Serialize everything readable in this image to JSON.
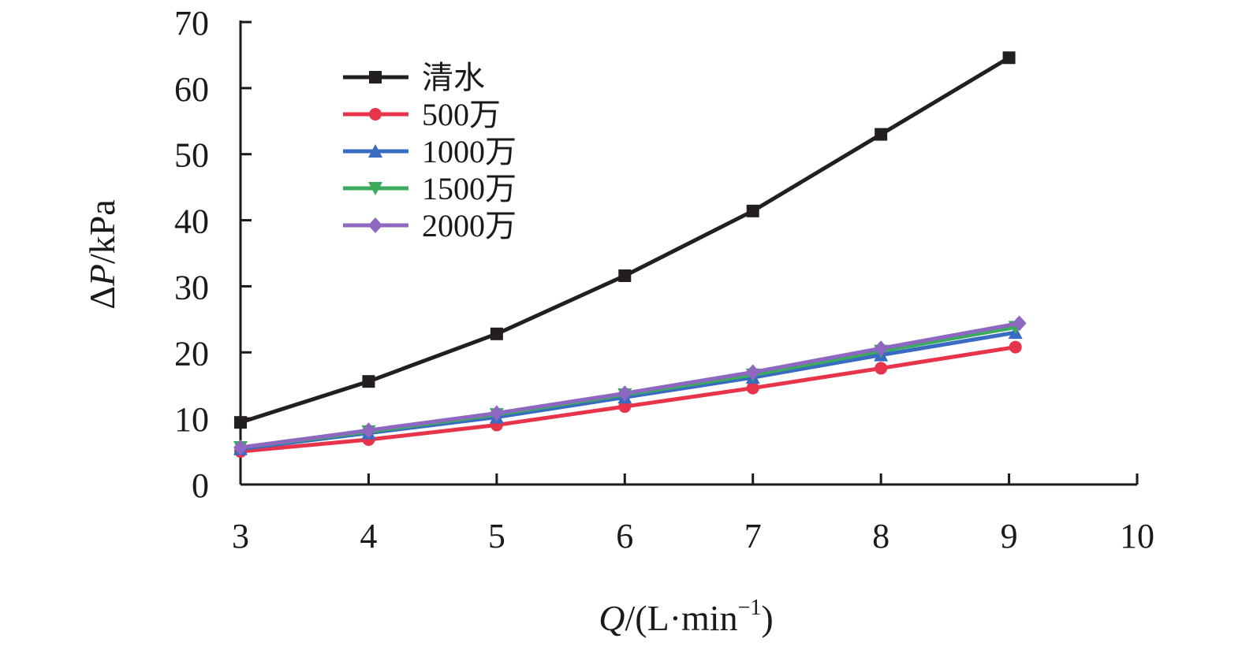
{
  "chart_data": {
    "type": "line",
    "title": "",
    "xlabel": {
      "var": "Q",
      "rest": "/(L·min",
      "sup": "−1",
      "close": ")"
    },
    "ylabel": {
      "delta": "Δ",
      "var": "P",
      "rest": "/kPa"
    },
    "xlim": [
      3,
      10
    ],
    "ylim": [
      0,
      70
    ],
    "xticks": [
      3,
      4,
      5,
      6,
      7,
      8,
      9,
      10
    ],
    "yticks": [
      0,
      10,
      20,
      30,
      40,
      50,
      60,
      70
    ],
    "grid": false,
    "legend": "upper-left",
    "series": [
      {
        "name": "清水",
        "color": "#231f20",
        "marker": "square",
        "x": [
          3.0,
          4.0,
          5.0,
          6.0,
          7.0,
          8.0,
          9.0
        ],
        "y": [
          9.4,
          15.6,
          22.8,
          31.6,
          41.4,
          53.0,
          64.6
        ]
      },
      {
        "name": "500万",
        "color": "#e8344a",
        "marker": "circle",
        "x": [
          3.0,
          4.0,
          5.0,
          6.0,
          7.0,
          8.0,
          9.05
        ],
        "y": [
          5.0,
          6.8,
          9.0,
          11.8,
          14.6,
          17.6,
          20.8
        ]
      },
      {
        "name": "1000万",
        "color": "#3a6bc2",
        "marker": "triangle-up",
        "x": [
          3.0,
          4.0,
          5.0,
          6.0,
          7.0,
          8.0,
          9.05
        ],
        "y": [
          5.4,
          7.8,
          10.2,
          13.2,
          16.2,
          19.6,
          23.0
        ]
      },
      {
        "name": "1500万",
        "color": "#3aaa5c",
        "marker": "triangle-down",
        "x": [
          3.0,
          4.0,
          5.0,
          6.0,
          7.0,
          8.0,
          9.05
        ],
        "y": [
          5.6,
          8.0,
          10.6,
          13.6,
          16.6,
          20.2,
          23.8
        ]
      },
      {
        "name": "2000万",
        "color": "#8e68c0",
        "marker": "diamond",
        "x": [
          3.0,
          4.0,
          5.0,
          6.0,
          7.0,
          8.0,
          9.08
        ],
        "y": [
          5.6,
          8.2,
          10.8,
          13.8,
          17.0,
          20.6,
          24.4
        ]
      }
    ]
  }
}
